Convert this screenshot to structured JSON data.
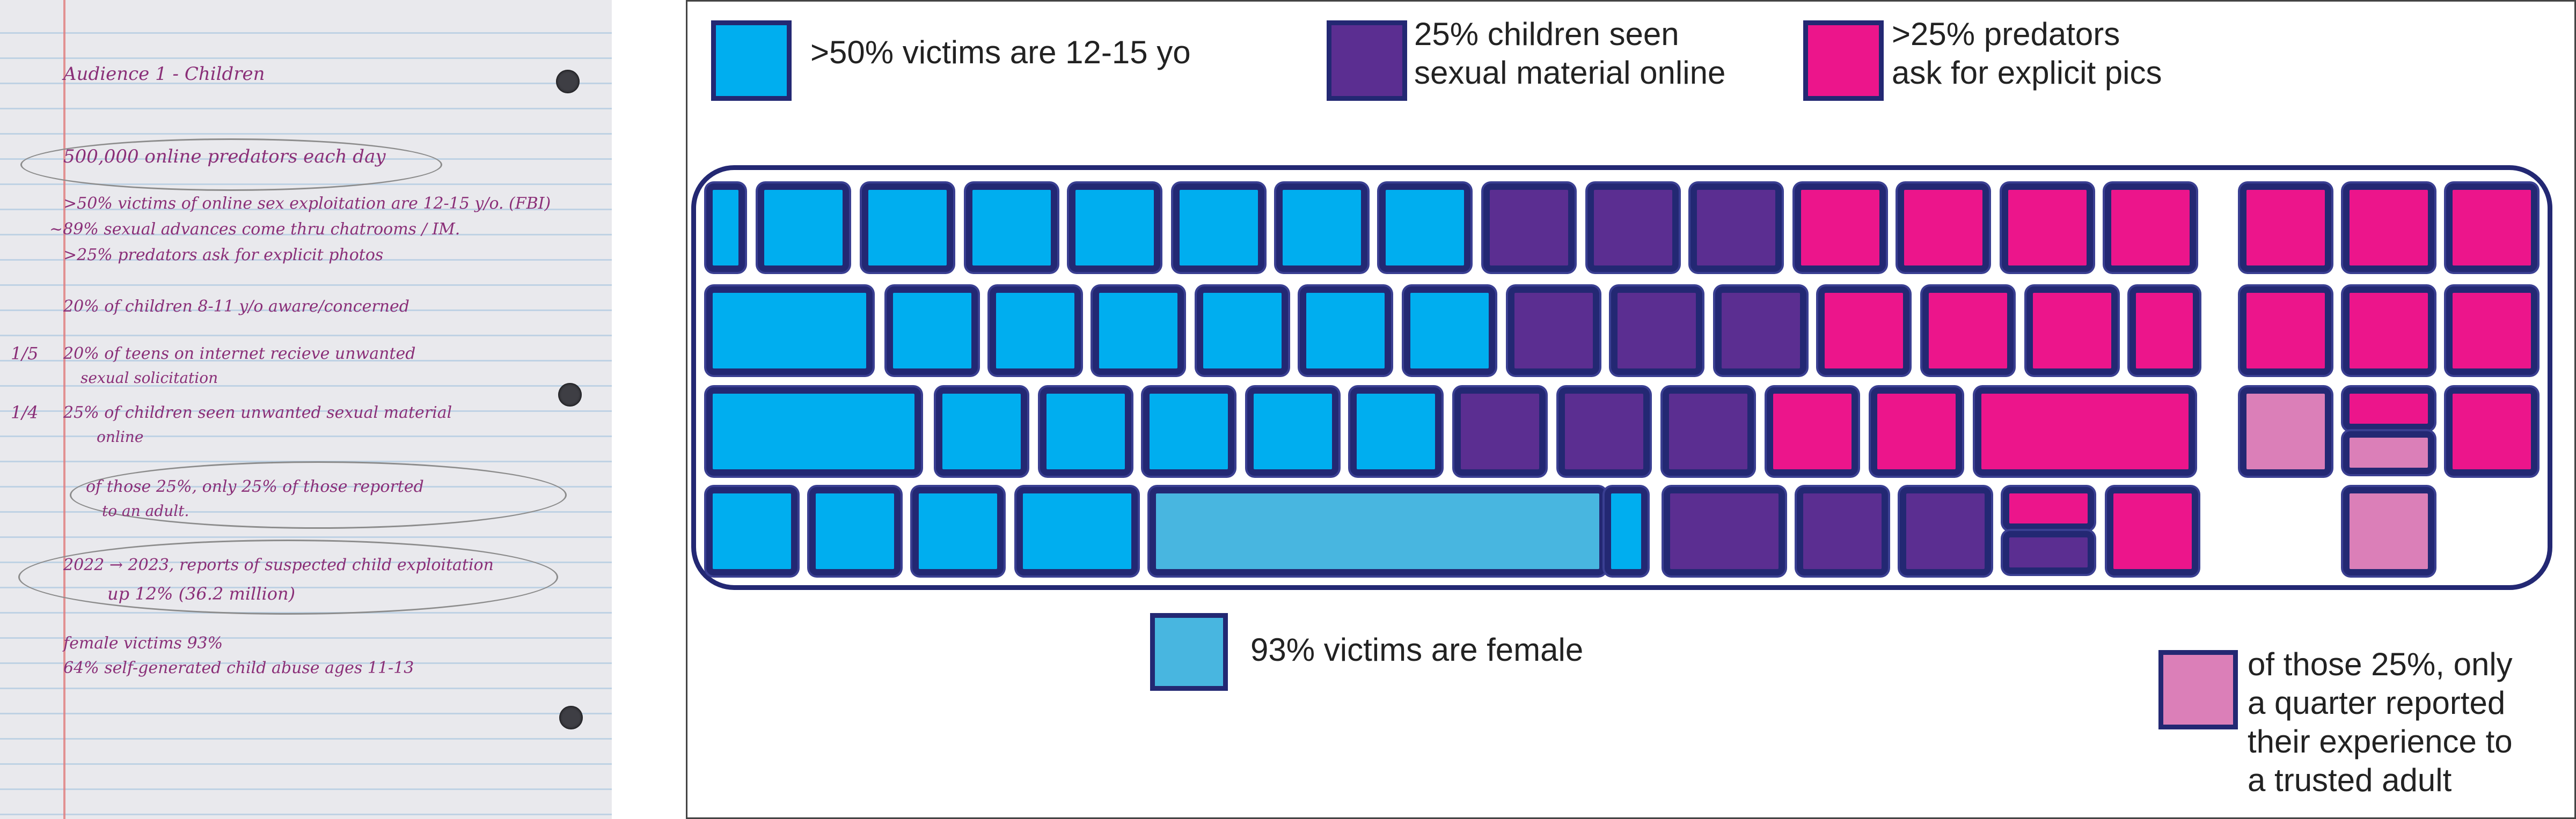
{
  "notebook": {
    "heading": "Audience 1 - Children",
    "lines": [
      "500,000 online predators each day",
      ">50% victims of online sex exploitation are 12-15 y/o. (FBI)",
      "~89% sexual advances come thru chatrooms / IM.",
      ">25% predators ask for explicit photos",
      "20% of children 8-11 y/o aware/concerned",
      "20% of teens on internet recieve unwanted",
      "sexual solicitation",
      "25% of children seen unwanted sexual material",
      "online",
      "of those 25%, only 25% of those reported",
      "to an adult.",
      "2022 → 2023, reports of suspected child exploitation",
      "up 12% (36.2 million)",
      "female victims 93%",
      "64% self-generated child abuse ages 11-13"
    ],
    "margin_notes": [
      "1/5",
      "1/4"
    ]
  },
  "legend": [
    {
      "text": ">50% victims are 12-15 yo",
      "color": "#00aeef"
    },
    {
      "text": "25% children seen\nsexual material online",
      "color": "#5b2e91"
    },
    {
      "text": ">25% predators\nask for explicit pics",
      "color": "#ec158b"
    },
    {
      "text": "93% victims are female",
      "color": "#48b6e0"
    },
    {
      "text": "of those 25%, only\na quarter reported\ntheir experience to\na trusted adult",
      "color": "#db7fb8"
    }
  ],
  "colors": {
    "outline": "#232873",
    "cyan": "#00aeef",
    "purple": "#5b2e91",
    "magenta": "#ec158b",
    "light_blue": "#48b6e0",
    "pink": "#db7fb8"
  }
}
